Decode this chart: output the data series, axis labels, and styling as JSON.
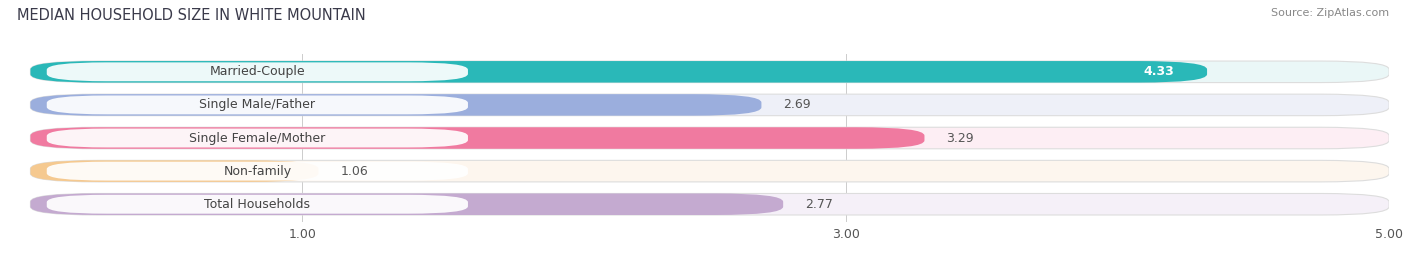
{
  "title": "MEDIAN HOUSEHOLD SIZE IN WHITE MOUNTAIN",
  "source": "Source: ZipAtlas.com",
  "categories": [
    "Married-Couple",
    "Single Male/Father",
    "Single Female/Mother",
    "Non-family",
    "Total Households"
  ],
  "values": [
    4.33,
    2.69,
    3.29,
    1.06,
    2.77
  ],
  "bar_colors": [
    "#2ab8b8",
    "#9baedd",
    "#f07aa0",
    "#f5c990",
    "#c4aad0"
  ],
  "bar_bg_colors": [
    "#eaf7f7",
    "#eef0f8",
    "#fdeef4",
    "#fdf6ee",
    "#f5f0f8"
  ],
  "value_inside": [
    true,
    false,
    false,
    false,
    false
  ],
  "value_colors_inside": [
    "#ffffff",
    "#555555",
    "#555555",
    "#555555",
    "#555555"
  ],
  "xlim": [
    0,
    5.3
  ],
  "xlim_display": 5.0,
  "xticks": [
    1.0,
    3.0,
    5.0
  ],
  "title_fontsize": 10.5,
  "label_fontsize": 9,
  "value_fontsize": 9,
  "source_fontsize": 8
}
